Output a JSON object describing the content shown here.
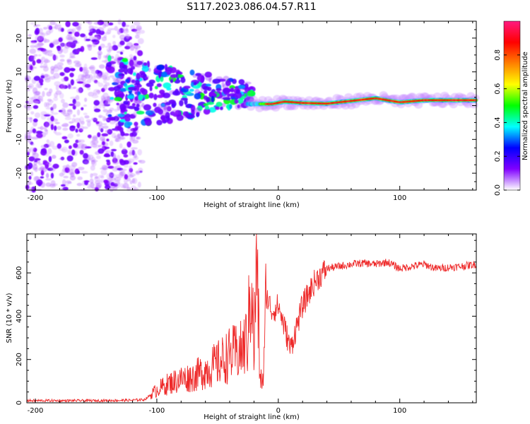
{
  "title": "S117.2023.086.04.57.R11",
  "chart_data": [
    {
      "type": "heatmap",
      "xlabel": "Height of straight line (km)",
      "ylabel": "Frequency (Hz)",
      "xlim": [
        -207,
        163
      ],
      "ylim": [
        -25,
        25
      ],
      "x_ticks": [
        -200,
        -100,
        0,
        100
      ],
      "x_tick_labels": [
        "-200",
        "-100",
        "0",
        "100"
      ],
      "y_ticks": [
        -20,
        -10,
        0,
        10,
        20
      ],
      "y_tick_labels": [
        "-20",
        "-10",
        "0",
        "10",
        "20"
      ],
      "ridge": [
        {
          "x": -5,
          "freq": 0.5
        },
        {
          "x": 5,
          "freq": 1.2
        },
        {
          "x": 20,
          "freq": 0.8
        },
        {
          "x": 40,
          "freq": 0.6
        },
        {
          "x": 60,
          "freq": 1.4
        },
        {
          "x": 80,
          "freq": 2.2
        },
        {
          "x": 100,
          "freq": 1.0
        },
        {
          "x": 120,
          "freq": 1.6
        },
        {
          "x": 163,
          "freq": 1.6
        }
      ],
      "colorbar": {
        "label": "Normalized spectral amplitude",
        "range": [
          0.0,
          1.0
        ],
        "ticks": [
          0.0,
          0.2,
          0.4,
          0.6,
          0.8
        ],
        "tick_labels": [
          "0.0",
          "0.2",
          "0.4",
          "0.6",
          "0.8"
        ],
        "colors": [
          "#ffffff",
          "#8000ff",
          "#0000ff",
          "#00ffff",
          "#00ff00",
          "#ffff00",
          "#ff8000",
          "#ff0000",
          "#ff1a80"
        ]
      }
    },
    {
      "type": "line",
      "xlabel": "Height of straight line (km)",
      "ylabel": "SNR (10 * v/v)",
      "xlim": [
        -207,
        163
      ],
      "ylim": [
        0,
        780
      ],
      "x_ticks": [
        -200,
        -100,
        0,
        100
      ],
      "x_tick_labels": [
        "-200",
        "-100",
        "0",
        "100"
      ],
      "y_ticks": [
        0,
        200,
        400,
        600
      ],
      "y_tick_labels": [
        "0",
        "200",
        "400",
        "600"
      ],
      "series": [
        {
          "name": "SNR",
          "color": "#ee2a2a",
          "x": [
            -207,
            -180,
            -150,
            -120,
            -110,
            -100,
            -90,
            -80,
            -70,
            -60,
            -50,
            -40,
            -30,
            -25,
            -22,
            -20,
            -18,
            -15,
            -12,
            -10,
            -5,
            0,
            10,
            20,
            30,
            40,
            50,
            60,
            70,
            80,
            90,
            100,
            110,
            120,
            130,
            140,
            150,
            163
          ],
          "y": [
            10,
            10,
            10,
            12,
            15,
            60,
            90,
            110,
            120,
            150,
            180,
            220,
            240,
            300,
            620,
            200,
            700,
            100,
            120,
            500,
            420,
            450,
            250,
            450,
            560,
            620,
            630,
            640,
            645,
            640,
            650,
            620,
            630,
            640,
            620,
            625,
            630,
            640
          ]
        }
      ]
    }
  ]
}
